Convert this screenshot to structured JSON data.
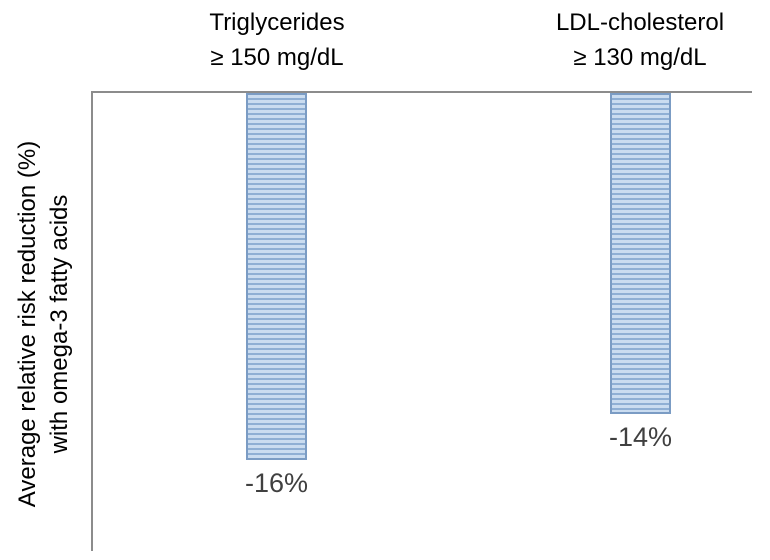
{
  "chart_data": {
    "type": "bar",
    "title": "",
    "categories": [
      "Triglycerides\n≥ 150 mg/dL",
      "LDL-cholesterol\n≥ 130 mg/dL"
    ],
    "values": [
      -16,
      -14
    ],
    "data_labels": [
      "-16%",
      "-14%"
    ],
    "unit": "%",
    "xlabel": "",
    "ylabel": "Average relative risk reduction (%)\nwith omega-3 fatty acids",
    "ylim": [
      -20,
      0
    ],
    "grid": false,
    "legend": false,
    "bar_direction": "downward-from-zero-baseline",
    "bar_pattern": "light-horizontal-stripes",
    "colors": {
      "bar_fill_light": "#cadcf0",
      "bar_stripe": "#8fafd4",
      "bar_border": "#7b9cc4",
      "axis_line": "#8c8c8c",
      "data_label": "#404040",
      "text": "#000000",
      "background": "#ffffff"
    }
  }
}
